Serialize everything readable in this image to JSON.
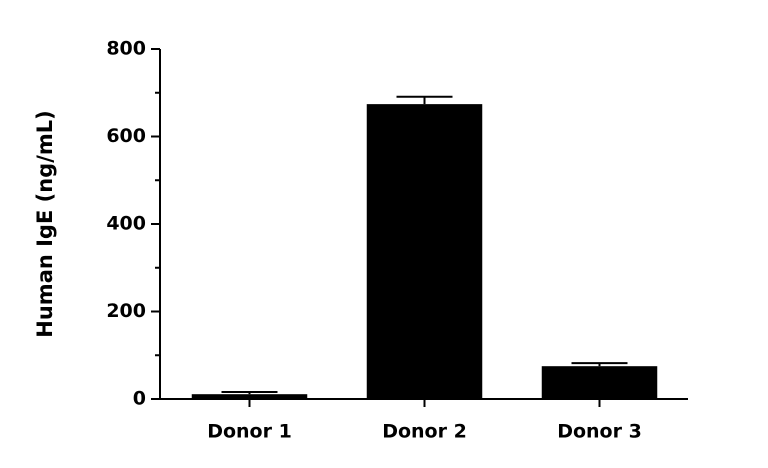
{
  "chart_data": {
    "type": "bar",
    "y_label": "Human IgE (ng/mL)",
    "categories": [
      "Donor 1",
      "Donor 2",
      "Donor 3"
    ],
    "values": [
      11,
      674,
      75
    ],
    "errors": [
      5,
      17,
      7
    ],
    "color": "#000000",
    "ylim": [
      0,
      800
    ],
    "yticks": [
      0,
      200,
      400,
      600,
      800
    ],
    "minor_yticks": [
      100,
      300,
      500,
      700
    ],
    "grid": false
  }
}
